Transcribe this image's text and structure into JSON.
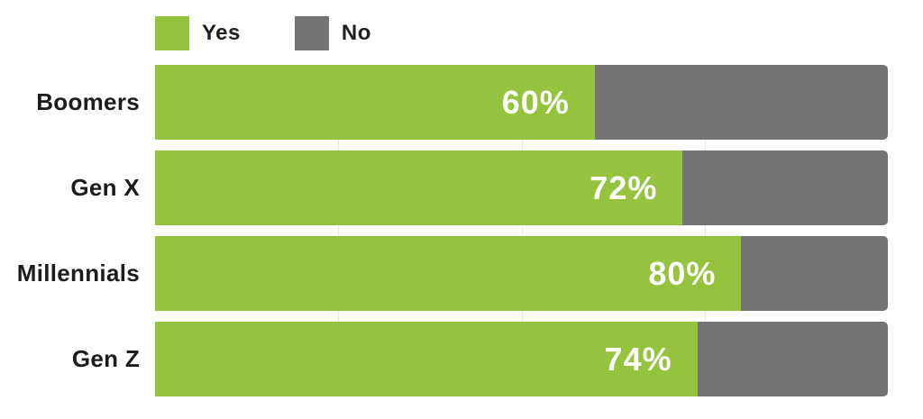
{
  "chart_data": {
    "type": "bar",
    "orientation": "horizontal",
    "stacked": true,
    "categories": [
      "Boomers",
      "Gen X",
      "Millennials",
      "Gen Z"
    ],
    "series": [
      {
        "name": "Yes",
        "values": [
          60,
          72,
          80,
          74
        ]
      },
      {
        "name": "No",
        "values": [
          40,
          28,
          20,
          26
        ]
      }
    ],
    "value_labels": [
      "60%",
      "72%",
      "80%",
      "74%"
    ],
    "xlim": [
      0,
      100
    ],
    "gridlines_percent": [
      25,
      50,
      75
    ],
    "grid": true,
    "legend_position": "top",
    "colors": {
      "yes": "#95C33D",
      "no": "#747474",
      "gridline": "#e9e9e9",
      "value_label_text": "#ffffff",
      "category_label_text": "#1c1c1c"
    }
  },
  "legend": {
    "items": [
      {
        "label": "Yes",
        "color": "#95C33D"
      },
      {
        "label": "No",
        "color": "#747474"
      }
    ]
  }
}
